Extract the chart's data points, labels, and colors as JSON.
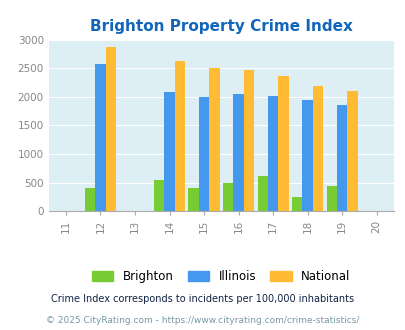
{
  "title": "Brighton Property Crime Index",
  "x_all_ticks": [
    11,
    12,
    13,
    14,
    15,
    16,
    17,
    18,
    19,
    20
  ],
  "x_all_labels": [
    "11",
    "12",
    "13",
    "14",
    "15",
    "16",
    "17",
    "18",
    "19",
    "20"
  ],
  "bar_positions": [
    12,
    14,
    15,
    16,
    17,
    18,
    19
  ],
  "brighton": [
    400,
    550,
    400,
    500,
    610,
    250,
    440
  ],
  "illinois": [
    2580,
    2090,
    2000,
    2050,
    2020,
    1950,
    1850
  ],
  "national": [
    2870,
    2620,
    2500,
    2470,
    2370,
    2190,
    2100
  ],
  "brighton_color": "#77cc33",
  "illinois_color": "#4499ee",
  "national_color": "#ffbb33",
  "bg_color": "#ddeef5",
  "ylim": [
    0,
    3000
  ],
  "yticks": [
    0,
    500,
    1000,
    1500,
    2000,
    2500,
    3000
  ],
  "legend_labels": [
    "Brighton",
    "Illinois",
    "National"
  ],
  "footnote1": "Crime Index corresponds to incidents per 100,000 inhabitants",
  "footnote2": "© 2025 CityRating.com - https://www.cityrating.com/crime-statistics/",
  "title_color": "#1166bb",
  "footnote1_color": "#112244",
  "footnote2_color": "#7799aa"
}
